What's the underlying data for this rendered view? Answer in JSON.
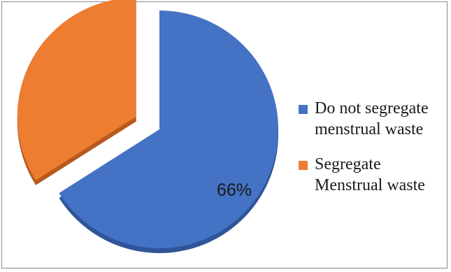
{
  "chart_data": {
    "type": "pie",
    "categories": [
      "Do not segregate menstrual waste",
      "Segregate Menstrual waste"
    ],
    "values": [
      66,
      34
    ],
    "unit": "%",
    "data_labels": [
      "66%",
      ""
    ],
    "colors": [
      "#4472C4",
      "#ED7D31"
    ],
    "exploded_slice": "Segregate Menstrual waste",
    "legend_position": "right",
    "legend_lines": [
      [
        "Do not segregate",
        "menstrual waste"
      ],
      [
        "Segregate",
        "Menstrual waste"
      ]
    ]
  }
}
